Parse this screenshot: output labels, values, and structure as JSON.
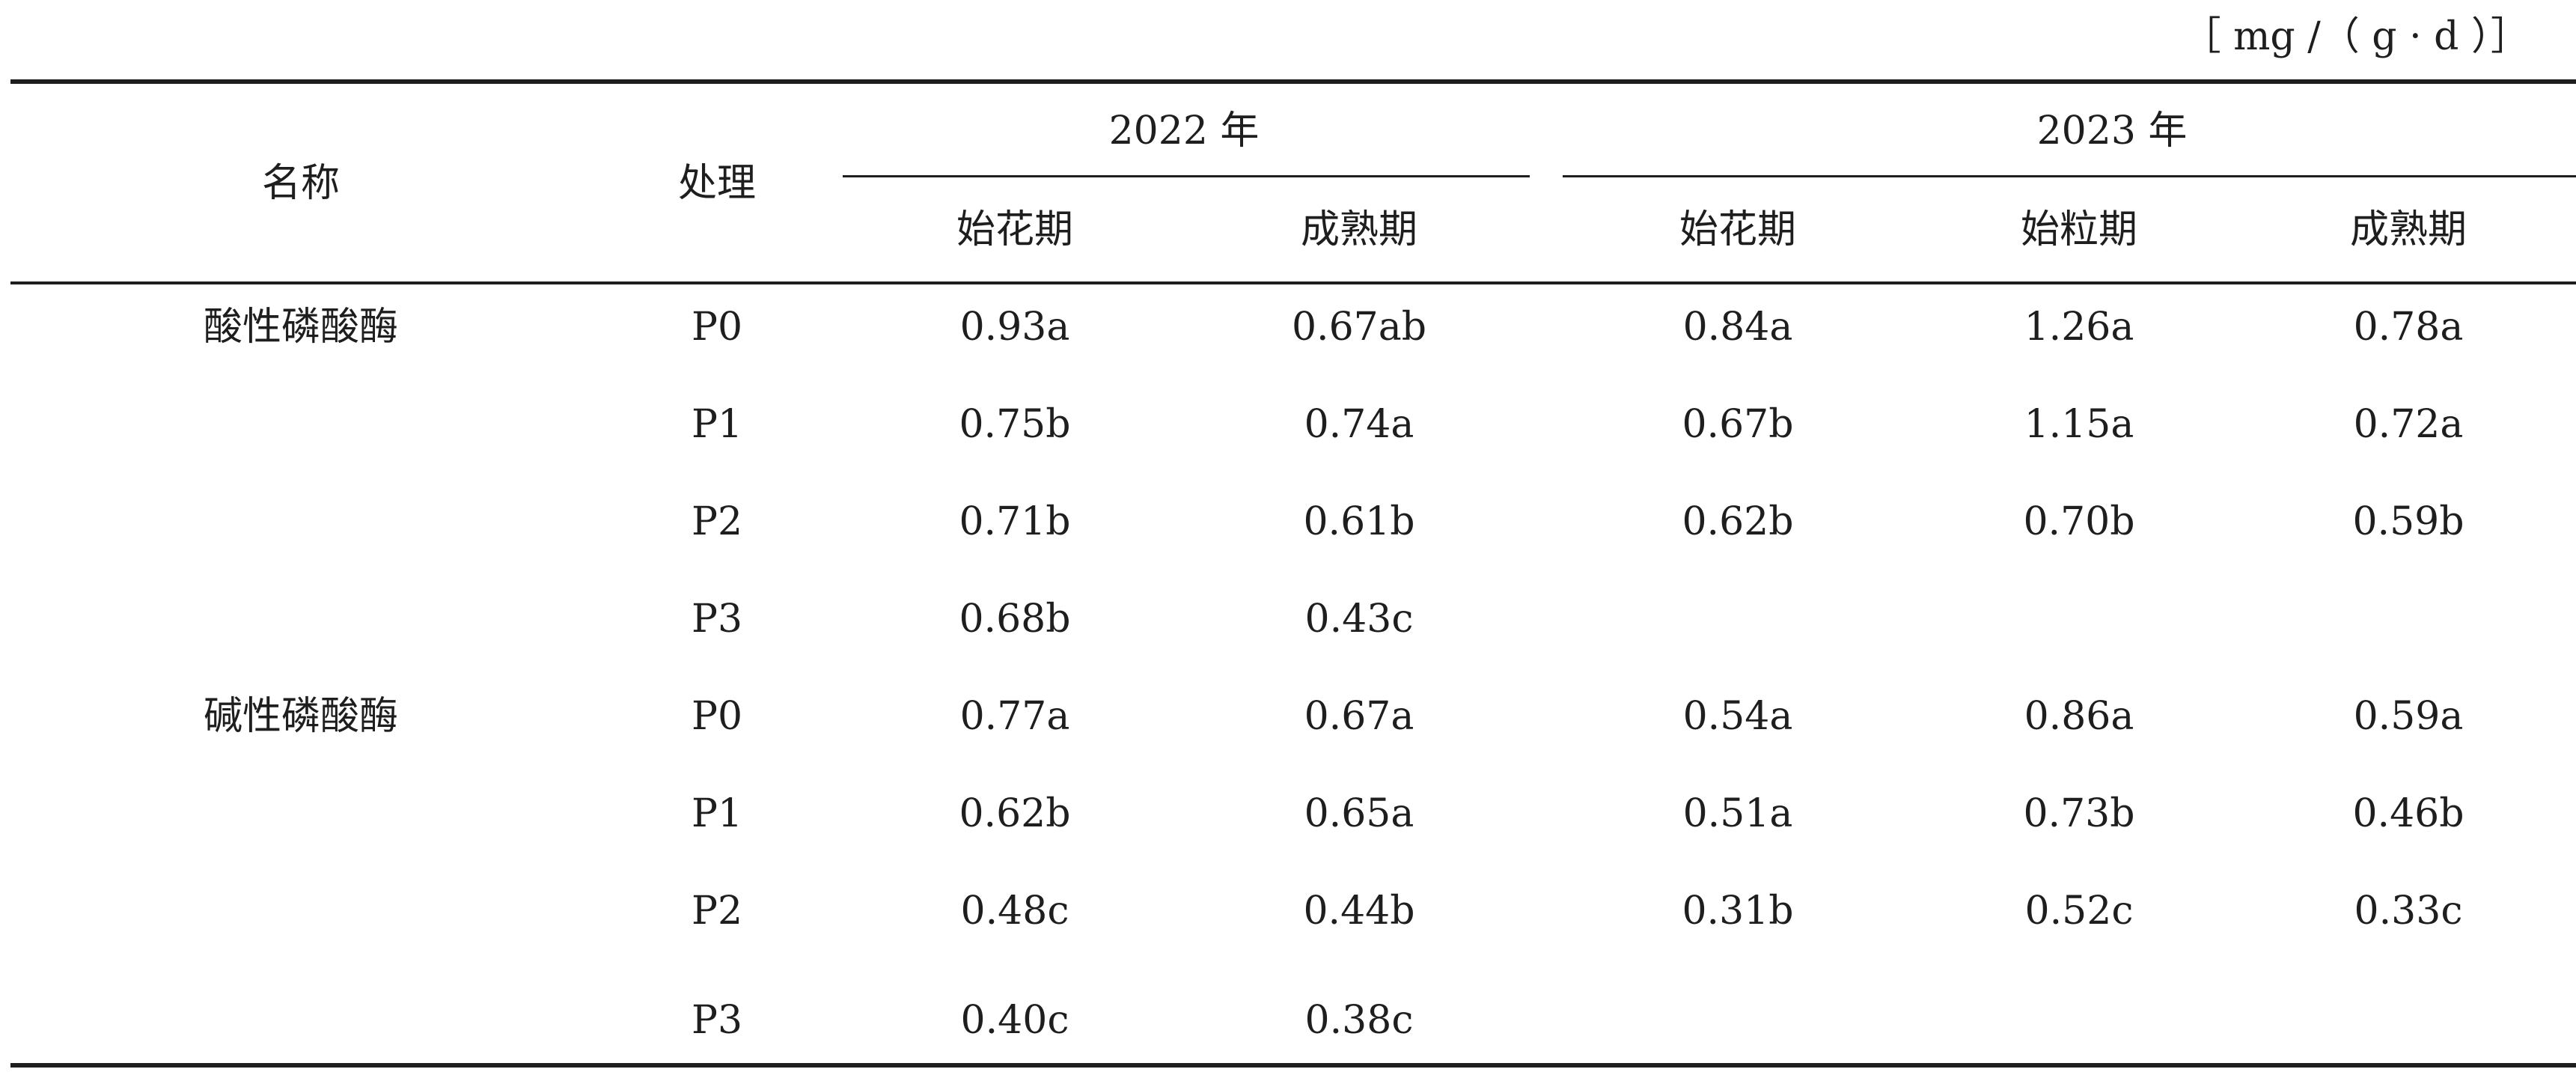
{
  "unit": "［ mg /（ g · d ）］",
  "headers": {
    "name": "名称",
    "treatment": "处理",
    "year_2022": "2022 年",
    "year_2023": "2023 年",
    "stages_2022": [
      "始花期",
      "成熟期"
    ],
    "stages_2023": [
      "始花期",
      "始粒期",
      "成熟期"
    ]
  },
  "rows": [
    {
      "name": "酸性磷酸酶",
      "treatment": "P0",
      "values": [
        "0.93a",
        "0.67ab",
        "0.84a",
        "1.26a",
        "0.78a"
      ]
    },
    {
      "name": "",
      "treatment": "P1",
      "values": [
        "0.75b",
        "0.74a",
        "0.67b",
        "1.15a",
        "0.72a"
      ]
    },
    {
      "name": "",
      "treatment": "P2",
      "values": [
        "0.71b",
        "0.61b",
        "0.62b",
        "0.70b",
        "0.59b"
      ]
    },
    {
      "name": "",
      "treatment": "P3",
      "values": [
        "0.68b",
        "0.43c",
        "",
        "",
        ""
      ]
    },
    {
      "name": "碱性磷酸酶",
      "treatment": "P0",
      "values": [
        "0.77a",
        "0.67a",
        "0.54a",
        "0.86a",
        "0.59a"
      ]
    },
    {
      "name": "",
      "treatment": "P1",
      "values": [
        "0.62b",
        "0.65a",
        "0.51a",
        "0.73b",
        "0.46b"
      ]
    },
    {
      "name": "",
      "treatment": "P2",
      "values": [
        "0.48c",
        "0.44b",
        "0.31b",
        "0.52c",
        "0.33c"
      ]
    },
    {
      "name": "",
      "treatment": "P3",
      "values": [
        "0.40c",
        "0.38c",
        "",
        "",
        ""
      ]
    }
  ]
}
